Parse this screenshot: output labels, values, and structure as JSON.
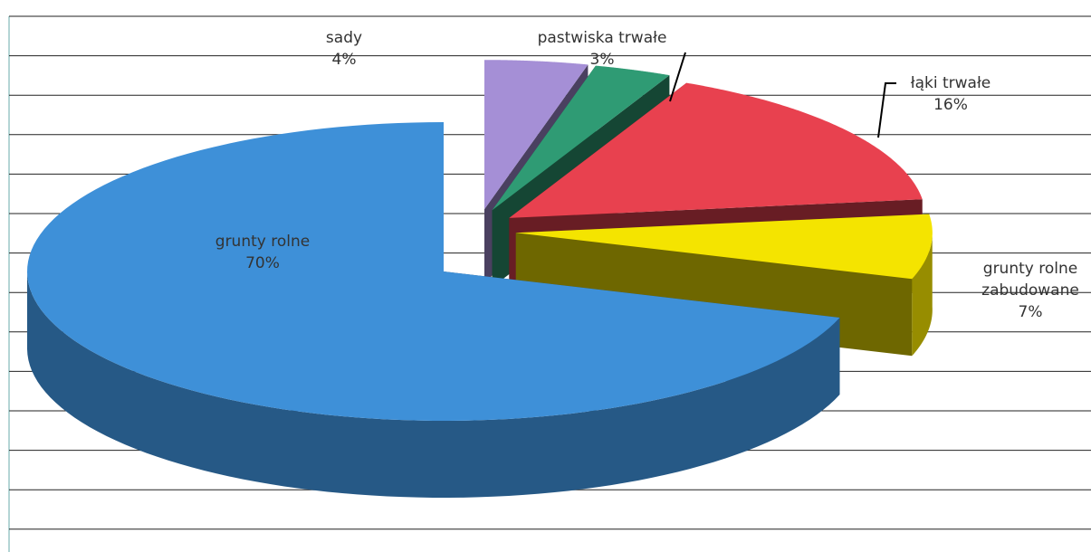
{
  "chart_data": {
    "type": "pie3d",
    "categories": [
      "grunty rolne",
      "sady",
      "pastwiska trwałe",
      "łąki trwałe",
      "grunty rolne zabudowane"
    ],
    "values": [
      70,
      4,
      3,
      16,
      7
    ],
    "value_labels": [
      "70%",
      "4%",
      "3%",
      "16%",
      "7%"
    ],
    "colors": [
      "#3e90d8",
      "#a58fd6",
      "#2f9b74",
      "#e8414f",
      "#f4e400"
    ]
  }
}
